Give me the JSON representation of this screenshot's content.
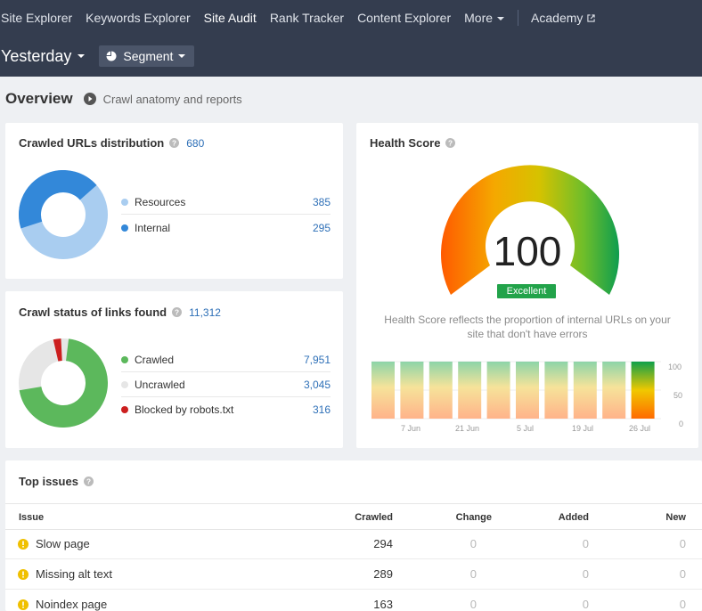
{
  "nav": {
    "items": [
      "Site Explorer",
      "Keywords Explorer",
      "Site Audit",
      "Rank Tracker",
      "Content Explorer",
      "More"
    ],
    "active": "Site Audit",
    "academy": "Academy"
  },
  "subbar": {
    "period": "Yesterday",
    "segment": "Segment"
  },
  "overview": {
    "title": "Overview",
    "link": "Crawl anatomy and reports"
  },
  "crawled_urls": {
    "title": "Crawled URLs distribution",
    "total": "680",
    "items": [
      {
        "label": "Resources",
        "value": "385",
        "color": "#a9cdf0"
      },
      {
        "label": "Internal",
        "value": "295",
        "color": "#3388d9"
      }
    ]
  },
  "crawl_status": {
    "title": "Crawl status of links found",
    "total": "11,312",
    "items": [
      {
        "label": "Crawled",
        "value": "7,951",
        "color": "#5cb85c"
      },
      {
        "label": "Uncrawled",
        "value": "3,045",
        "color": "#e6e6e6"
      },
      {
        "label": "Blocked by robots.txt",
        "value": "316",
        "color": "#cc1f1f"
      }
    ]
  },
  "health": {
    "title": "Health Score",
    "score": "100",
    "badge": "Excellent",
    "badge_color": "#22a34a",
    "description": "Health Score reflects the proportion of internal URLs on your site that don't have errors",
    "chart_data": {
      "type": "bar",
      "bars": [
        100,
        100,
        100,
        100,
        100,
        100,
        100,
        100,
        100,
        100
      ],
      "highlight_last": true,
      "x_tick_labels": [
        "7 Jun",
        "21 Jun",
        "5 Jul",
        "19 Jul",
        "26 Jul"
      ],
      "y_tick_labels": [
        "100",
        "50",
        "0"
      ],
      "ylim": [
        0,
        100
      ]
    }
  },
  "top_issues": {
    "title": "Top issues",
    "columns": [
      "Issue",
      "Crawled",
      "Change",
      "Added",
      "New"
    ],
    "rows": [
      {
        "issue": "Slow page",
        "crawled": "294",
        "change": "0",
        "added": "0",
        "new": "0"
      },
      {
        "issue": "Missing alt text",
        "crawled": "289",
        "change": "0",
        "added": "0",
        "new": "0"
      },
      {
        "issue": "Noindex page",
        "crawled": "163",
        "change": "0",
        "added": "0",
        "new": "0"
      }
    ]
  }
}
